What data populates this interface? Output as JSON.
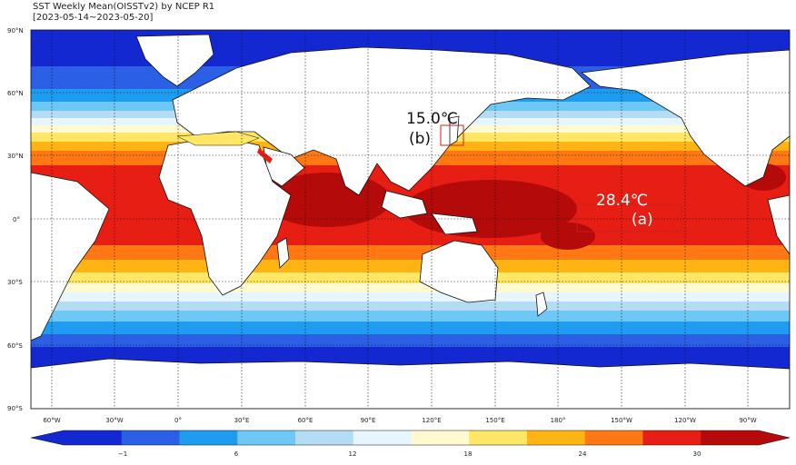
{
  "title": {
    "line1": "SST Weekly Mean(OISSTv2) by NCEP R1",
    "line2": "[2023-05-14~2023-05-20]"
  },
  "lat_ticks": [
    "90°N",
    "60°N",
    "30°N",
    "0°",
    "30°S",
    "60°S",
    "90°S"
  ],
  "lon_ticks": [
    "60°W",
    "30°W",
    "0°",
    "30°E",
    "60°E",
    "90°E",
    "120°E",
    "150°E",
    "180°",
    "150°W",
    "120°W",
    "90°W"
  ],
  "colorbar": {
    "ticks": [
      "−1",
      "6",
      "12",
      "18",
      "24",
      "30"
    ],
    "colors": [
      "#1428d2",
      "#2a5fe6",
      "#1e9cf0",
      "#6ec8f5",
      "#b4ddf5",
      "#e6f6fc",
      "#fffad2",
      "#ffe664",
      "#ffb414",
      "#ff7814",
      "#e61e14",
      "#b40a0a"
    ]
  },
  "annotations": {
    "b_value": "15.0℃",
    "b_label": "(b)",
    "a_value": "28.4℃",
    "a_label": "(a)"
  }
}
